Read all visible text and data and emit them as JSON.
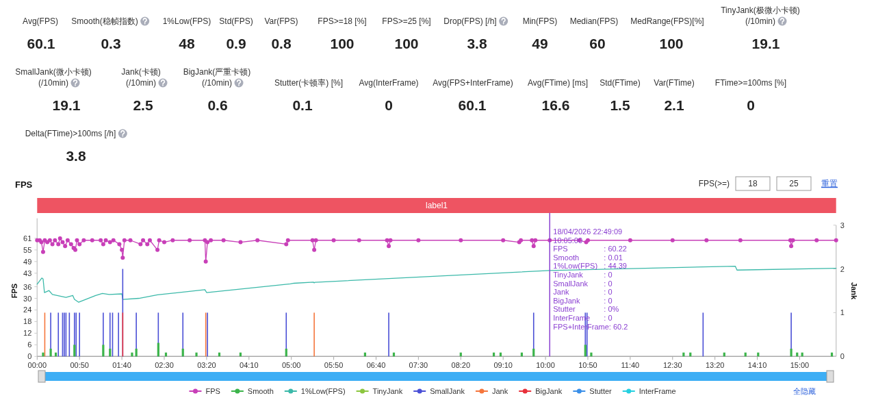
{
  "chart_data": [
    {
      "type": "other",
      "data_labels": true,
      "categories": [
        "Avg(FPS)",
        "Smooth(稳帧指数)",
        "1%Low(FPS)",
        "Std(FPS)",
        "Var(FPS)",
        "FPS>=18 [%]",
        "FPS>=25 [%]",
        "Drop(FPS) [/h]",
        "Min(FPS)",
        "Median(FPS)",
        "MedRange(FPS)[%]",
        "TinyJank(极微小卡顿)\n(/10min)",
        "SmallJank(微小卡顿)\n(/10min)",
        "Jank(卡顿)\n(/10min)",
        "BigJank(严重卡顿)\n(/10min)",
        "Stutter(卡顿率) [%]",
        "Avg(InterFrame)",
        "Avg(FPS+InterFrame)",
        "Avg(FTime) [ms]",
        "Std(FTime)",
        "Var(FTime)",
        "FTime>=100ms [%]",
        "Delta(FTime)>100ms [/h]"
      ],
      "values": [
        60.1,
        0.3,
        48,
        0.9,
        0.8,
        100,
        100,
        3.8,
        49,
        60,
        100,
        19.1,
        19.1,
        2.5,
        0.6,
        0.1,
        0,
        60.1,
        16.6,
        1.5,
        2.1,
        0,
        3.8
      ]
    },
    {
      "type": "line",
      "title": "FPS",
      "ylabel": "FPS",
      "y2label": "Jank",
      "legend": "bottom",
      "xlim": [
        0,
        943
      ],
      "ylim": [
        0,
        67.8
      ],
      "y2lim": [
        0,
        3
      ],
      "xticks": [
        {
          "value": 0,
          "label": "00:00"
        },
        {
          "value": 50,
          "label": "00:50"
        },
        {
          "value": 100,
          "label": "01:40"
        },
        {
          "value": 150,
          "label": "02:30"
        },
        {
          "value": 200,
          "label": "03:20"
        },
        {
          "value": 250,
          "label": "04:10"
        },
        {
          "value": 300,
          "label": "05:00"
        },
        {
          "value": 350,
          "label": "05:50"
        },
        {
          "value": 400,
          "label": "06:40"
        },
        {
          "value": 450,
          "label": "07:30"
        },
        {
          "value": 500,
          "label": "08:20"
        },
        {
          "value": 550,
          "label": "09:10"
        },
        {
          "value": 600,
          "label": "10:00"
        },
        {
          "value": 650,
          "label": "10:50"
        },
        {
          "value": 700,
          "label": "11:40"
        },
        {
          "value": 750,
          "label": "12:30"
        },
        {
          "value": 800,
          "label": "13:20"
        },
        {
          "value": 850,
          "label": "14:10"
        },
        {
          "value": 900,
          "label": "15:00"
        }
      ],
      "yticks": [
        0,
        6,
        12,
        18,
        24,
        30,
        36,
        43,
        49,
        55,
        61
      ],
      "y2ticks": [
        0,
        1,
        2,
        3
      ],
      "ref_lines": [
        {
          "axis": "x",
          "value": 605,
          "color": "#8a3fd1"
        }
      ],
      "annotations": [
        "FPS(>=)",
        "18",
        "25",
        "重置",
        "全隐藏",
        "label1",
        "18/04/2026 22:49:09",
        "10:05:00",
        "FPS : 60.22",
        "Smooth : 0.01",
        "1%Low(FPS) : 44.39",
        "TinyJank : 0",
        "SmallJank : 0",
        "Jank : 0",
        "BigJank : 0",
        "Stutter : 0%",
        "InterFrame : 0",
        "FPS+InterFrame: 60.2"
      ],
      "series": [
        {
          "name": "FPS",
          "color": "#c83fb8",
          "marker": "circle",
          "x": [
            0,
            3,
            5,
            7,
            9,
            12,
            15,
            18,
            21,
            25,
            27,
            30,
            33,
            36,
            40,
            43,
            45,
            47,
            50,
            55,
            65,
            75,
            78,
            81,
            86,
            90,
            97,
            100,
            101,
            103,
            110,
            122,
            125,
            130,
            133,
            142,
            144,
            150,
            160,
            180,
            198,
            199,
            201,
            205,
            220,
            240,
            260,
            294,
            296,
            325,
            327,
            329,
            350,
            380,
            413,
            415,
            417,
            450,
            500,
            550,
            569,
            571,
            584,
            586,
            588,
            605,
            640,
            648,
            650,
            700,
            750,
            790,
            830,
            889,
            890,
            892,
            920,
            943
          ],
          "values": [
            60,
            60,
            59,
            54,
            60,
            59,
            60,
            58,
            60,
            58,
            61,
            59,
            57,
            60,
            58,
            56,
            55,
            60,
            58,
            60,
            60,
            60,
            58,
            60,
            59,
            60,
            58,
            55,
            51,
            60,
            60,
            58,
            60,
            58,
            60,
            55,
            60,
            59,
            60,
            60,
            60,
            49,
            59,
            60,
            60,
            59,
            60,
            58,
            60,
            60,
            55,
            60,
            60,
            60,
            60,
            57,
            60,
            60,
            60,
            60,
            59,
            60,
            60,
            57,
            60,
            60,
            60,
            59,
            60,
            60,
            60,
            60,
            60,
            60,
            57,
            60,
            60,
            60
          ]
        },
        {
          "name": "Smooth",
          "color": "#3cb44b",
          "type": "bar",
          "x": [
            7,
            16,
            22,
            44,
            78,
            86,
            112,
            117,
            143,
            152,
            172,
            188,
            215,
            240,
            294,
            387,
            421,
            500,
            539,
            547,
            572,
            586,
            647,
            654,
            763,
            771,
            811,
            836,
            851,
            890,
            897,
            903,
            938
          ],
          "values": [
            2,
            4,
            2,
            6,
            6,
            4,
            2,
            4,
            7,
            2,
            4,
            2,
            2,
            2,
            4,
            2,
            2,
            2,
            2,
            2,
            2,
            4,
            6,
            2,
            2,
            2,
            2,
            2,
            2,
            4,
            2,
            2,
            2
          ]
        },
        {
          "name": "1%Low(FPS)",
          "color": "#3bb9a9",
          "x": [
            0,
            5.5,
            7,
            8.6,
            14,
            18,
            34,
            42,
            44,
            49,
            69,
            77,
            85,
            100,
            101,
            120,
            142,
            198,
            200,
            299,
            303,
            326,
            327,
            328,
            605,
            824,
            826,
            943
          ],
          "values": [
            37.3,
            40.5,
            40,
            33,
            34,
            32,
            30.5,
            31.5,
            29.5,
            28,
            31.5,
            32.5,
            32,
            32.3,
            29.4,
            30,
            31.8,
            34.5,
            33,
            37.5,
            37.8,
            38.4,
            38,
            38.3,
            44.4,
            46.6,
            44.6,
            45.5
          ]
        },
        {
          "name": "TinyJank",
          "color": "#8cc63f",
          "axis": "y2"
        },
        {
          "name": "SmallJank",
          "color": "#4a4fd6",
          "type": "bar",
          "axis": "y2",
          "x": [
            16,
            25,
            30,
            32,
            34,
            38,
            44,
            46,
            50,
            78,
            86,
            89,
            96,
            101,
            117,
            143,
            172,
            201,
            294,
            415,
            586,
            647,
            649,
            786,
            890
          ],
          "values": [
            1,
            1,
            1,
            1,
            1,
            1,
            1,
            1,
            1,
            1,
            1,
            1,
            1,
            2,
            1,
            1,
            1,
            1,
            1,
            1,
            1,
            1,
            1,
            1,
            1
          ]
        },
        {
          "name": "Jank",
          "color": "#f5763c",
          "type": "bar",
          "axis": "y2",
          "x": [
            9,
            199,
            327
          ],
          "values": [
            1,
            1,
            1
          ]
        },
        {
          "name": "BigJank",
          "color": "#e8303a",
          "type": "bar",
          "axis": "y2",
          "x": [
            101
          ],
          "values": [
            1
          ]
        },
        {
          "name": "Stutter",
          "color": "#3a8fe8",
          "axis": "y2"
        },
        {
          "name": "InterFrame",
          "color": "#26d0e0"
        }
      ]
    }
  ]
}
